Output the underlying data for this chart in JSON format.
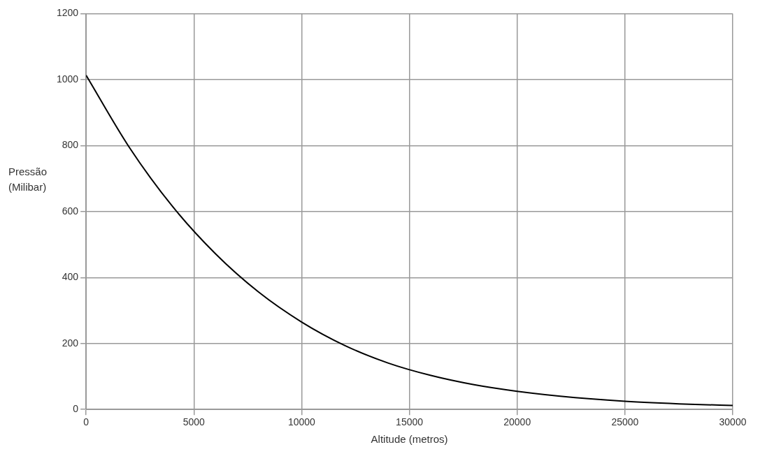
{
  "chart_data": {
    "type": "line",
    "xlabel": "Altitude (metros)",
    "ylabel": "Pressão (Milibar)",
    "x": [
      0,
      2000,
      4000,
      6000,
      8000,
      10000,
      12000,
      14000,
      16000,
      18000,
      20000,
      22000,
      25000,
      28000,
      30000
    ],
    "series": [
      {
        "color": "#000000",
        "values": [
          1013,
          795,
          616,
          472,
          356,
          265,
          194,
          141,
          103,
          75,
          55,
          40,
          25,
          16,
          12
        ]
      }
    ],
    "xlim": [
      0,
      30000
    ],
    "xticks": [
      0,
      5000,
      10000,
      15000,
      20000,
      25000,
      30000
    ],
    "ylim": [
      0,
      1200
    ],
    "yticks": [
      0,
      200,
      400,
      600,
      800,
      1000,
      1200
    ],
    "grid": true,
    "legend": false,
    "marker": "none",
    "line_style": "solid"
  }
}
